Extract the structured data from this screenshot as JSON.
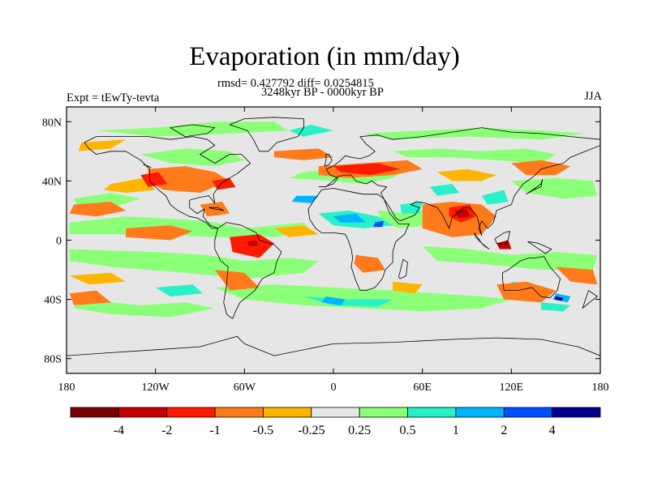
{
  "header": {
    "title": "Evaporation (in mm/day)",
    "stats": "rmsd= 0.427792 diff= 0.0254815",
    "period": "3248kyr BP - 0000kyr BP",
    "experiment": "Expt = tEwTy-tevta",
    "season": "JJA"
  },
  "map": {
    "projection": "cylindrical-equidistant",
    "lon_range": [
      -180,
      180
    ],
    "lat_range": [
      -90,
      90
    ],
    "lon_ticks": [
      "180",
      "120W",
      "60W",
      "0",
      "60E",
      "120E",
      "180"
    ],
    "lat_ticks": [
      "80N",
      "40N",
      "0",
      "40S",
      "80S"
    ],
    "background_color": "#e6e6e6"
  },
  "colorbar": {
    "labels": [
      "-4",
      "-2",
      "-1",
      "-0.5",
      "-0.25",
      "0.25",
      "0.5",
      "1",
      "2",
      "4"
    ],
    "colors": [
      "#7a0000",
      "#c40000",
      "#ff1a00",
      "#ff7a1a",
      "#ffb400",
      "#e6e6e6",
      "#8cff78",
      "#28f0c8",
      "#00b4ff",
      "#0050ff",
      "#00008c"
    ]
  }
}
